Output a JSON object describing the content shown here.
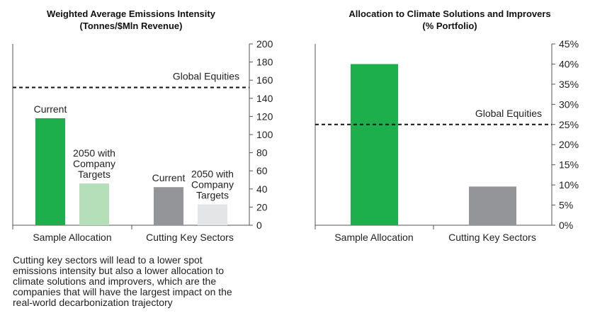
{
  "chart_data": [
    {
      "type": "bar",
      "title_lines": [
        "Weighted Average Emissions Intensity",
        "(Tonnes/$Mln Revenue)"
      ],
      "groups": [
        "Sample Allocation",
        "Cutting Key Sectors"
      ],
      "bars": [
        {
          "group": "Sample Allocation",
          "label_lines": [
            "Current"
          ],
          "value": 118,
          "color": "#1daf4b"
        },
        {
          "group": "Sample Allocation",
          "label_lines": [
            "2050 with",
            "Company",
            "Targets"
          ],
          "value": 46,
          "color": "#b5dfb9"
        },
        {
          "group": "Cutting Key Sectors",
          "label_lines": [
            "Current"
          ],
          "value": 42,
          "color": "#939598"
        },
        {
          "group": "Cutting Key Sectors",
          "label_lines": [
            "2050 with",
            "Company",
            "Targets"
          ],
          "value": 23,
          "color": "#e4e5e6"
        }
      ],
      "reference_line": {
        "label": "Global Equities",
        "value": 152
      },
      "ylim": [
        0,
        200
      ],
      "yticks": [
        0,
        20,
        40,
        60,
        80,
        100,
        120,
        140,
        160,
        180,
        200
      ],
      "tick_format": "",
      "y_axis_side": "right",
      "grid": false
    },
    {
      "type": "bar",
      "title_lines": [
        "Allocation to Climate Solutions and Improvers",
        "(% Portfolio)"
      ],
      "groups": [
        "Sample Allocation",
        "Cutting Key Sectors"
      ],
      "bars": [
        {
          "group": "Sample Allocation",
          "label_lines": [],
          "value": 40,
          "color": "#1daf4b"
        },
        {
          "group": "Cutting Key Sectors",
          "label_lines": [],
          "value": 9.6,
          "color": "#939598"
        }
      ],
      "reference_line": {
        "label": "Global Equities",
        "value": 25
      },
      "ylim": [
        0,
        45
      ],
      "yticks": [
        0,
        5,
        10,
        15,
        20,
        25,
        30,
        35,
        40,
        45
      ],
      "tick_format": "%",
      "y_axis_side": "right",
      "grid": false
    }
  ],
  "note": "Cutting key sectors will lead to a lower spot emissions intensity but also a lower allocation to climate solutions and improvers, which are the companies that will have the largest impact on the real-world decarbonization trajectory"
}
